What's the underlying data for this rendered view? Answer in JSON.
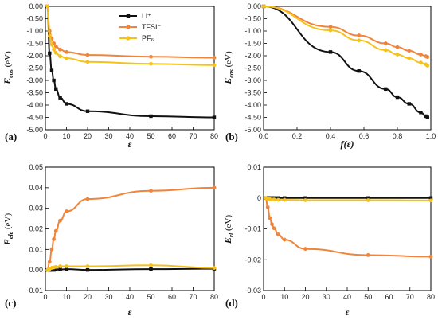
{
  "colors": {
    "li": "#111111",
    "tfsi": "#f0843a",
    "pf6": "#f5c21b"
  },
  "legend": [
    {
      "label": "Li⁺",
      "color": "#111111",
      "marker": "square"
    },
    {
      "label": "TFSI⁻",
      "color": "#f0843a",
      "marker": "circle"
    },
    {
      "label": "PF₆⁻",
      "color": "#f5c21b",
      "marker": "circle"
    }
  ],
  "chart_data": [
    {
      "panel": "(a)",
      "type": "line",
      "xlabel": "ε",
      "ylabel": "Ecos (eV)",
      "xlim": [
        0,
        80
      ],
      "ylim": [
        -5.0,
        0.0
      ],
      "xticks": [
        0,
        10,
        20,
        30,
        40,
        50,
        60,
        70,
        80
      ],
      "yticks": [
        0.0,
        -0.5,
        -1.0,
        -1.5,
        -2.0,
        -2.5,
        -3.0,
        -3.5,
        -4.0,
        -4.5,
        -5.0
      ],
      "ytick_labels": [
        "0.00",
        "-0.50",
        "-1.00",
        "-1.50",
        "-2.00",
        "-2.50",
        "-3.00",
        "-3.50",
        "-4.00",
        "-4.50",
        "-5.00"
      ],
      "series": [
        {
          "name": "Li⁺",
          "color": "#111111",
          "marker": "square",
          "x": [
            1,
            2,
            3,
            4,
            5,
            7,
            10,
            20,
            50,
            80
          ],
          "y": [
            0.0,
            -1.9,
            -2.6,
            -3.0,
            -3.35,
            -3.7,
            -3.95,
            -4.25,
            -4.45,
            -4.5
          ]
        },
        {
          "name": "TFSI⁻",
          "color": "#f0843a",
          "marker": "circle",
          "x": [
            1,
            2,
            3,
            4,
            5,
            7,
            10,
            20,
            50,
            80
          ],
          "y": [
            0.0,
            -1.0,
            -1.3,
            -1.5,
            -1.62,
            -1.75,
            -1.85,
            -1.97,
            -2.04,
            -2.08
          ]
        },
        {
          "name": "PF₆⁻",
          "color": "#f5c21b",
          "marker": "circle",
          "x": [
            1,
            2,
            3,
            4,
            5,
            7,
            10,
            20,
            50,
            80
          ],
          "y": [
            0.0,
            -1.2,
            -1.55,
            -1.75,
            -1.88,
            -2.02,
            -2.1,
            -2.25,
            -2.33,
            -2.38
          ]
        }
      ]
    },
    {
      "panel": "(b)",
      "type": "line",
      "xlabel": "f(ε)",
      "ylabel": "Ecos (eV)",
      "xlim": [
        0,
        1.0
      ],
      "ylim": [
        -5.0,
        0.0
      ],
      "xticks": [
        0,
        0.2,
        0.4,
        0.6,
        0.8,
        1.0
      ],
      "xtick_labels": [
        "0.0",
        "0.2",
        "0.4",
        "0.6",
        "0.8",
        "1.0"
      ],
      "yticks": [
        0.0,
        -0.5,
        -1.0,
        -1.5,
        -2.0,
        -2.5,
        -3.0,
        -3.5,
        -4.0,
        -4.5,
        -5.0
      ],
      "ytick_labels": [
        "0.00",
        "-0.50",
        "-1.00",
        "-1.50",
        "-2.00",
        "-2.50",
        "-3.00",
        "-3.50",
        "-4.00",
        "-4.50",
        "-5.00"
      ],
      "series": [
        {
          "name": "Li⁺",
          "color": "#111111",
          "marker": "square",
          "x": [
            0,
            0.4,
            0.57,
            0.73,
            0.8,
            0.87,
            0.94,
            0.97,
            0.98
          ],
          "y": [
            0.0,
            -1.85,
            -2.62,
            -3.35,
            -3.68,
            -3.95,
            -4.3,
            -4.45,
            -4.5
          ]
        },
        {
          "name": "TFSI⁻",
          "color": "#f0843a",
          "marker": "circle",
          "x": [
            0,
            0.4,
            0.57,
            0.73,
            0.8,
            0.87,
            0.94,
            0.97,
            0.98
          ],
          "y": [
            0.0,
            -0.83,
            -1.18,
            -1.5,
            -1.65,
            -1.8,
            -1.95,
            -2.02,
            -2.05
          ]
        },
        {
          "name": "PF₆⁻",
          "color": "#f5c21b",
          "marker": "circle",
          "x": [
            0,
            0.4,
            0.57,
            0.73,
            0.8,
            0.87,
            0.94,
            0.97,
            0.98
          ],
          "y": [
            0.0,
            -0.97,
            -1.38,
            -1.77,
            -1.95,
            -2.1,
            -2.28,
            -2.35,
            -2.4
          ]
        }
      ]
    },
    {
      "panel": "(c)",
      "type": "line",
      "xlabel": "ε",
      "ylabel": "Eele (eV)",
      "xlim": [
        0,
        80
      ],
      "ylim": [
        -0.01,
        0.05
      ],
      "xticks": [
        0,
        10,
        20,
        30,
        40,
        50,
        60,
        70,
        80
      ],
      "yticks": [
        -0.01,
        0.0,
        0.01,
        0.02,
        0.03,
        0.04,
        0.05
      ],
      "ytick_labels": [
        "-0.01",
        "0.00",
        "0.01",
        "0.02",
        "0.03",
        "0.04",
        "0.05"
      ],
      "series": [
        {
          "name": "Li⁺",
          "color": "#111111",
          "marker": "square",
          "x": [
            1,
            2,
            3,
            4,
            5,
            7,
            10,
            20,
            50,
            80
          ],
          "y": [
            0.0,
            0.0,
            0.0,
            0.0,
            0.0002,
            0.0002,
            0.0004,
            0.0,
            0.0004,
            0.0006
          ]
        },
        {
          "name": "TFSI⁻",
          "color": "#f0843a",
          "marker": "circle",
          "x": [
            1,
            2,
            3,
            4,
            5,
            7,
            10,
            20,
            50,
            80
          ],
          "y": [
            0.0,
            0.004,
            0.01,
            0.015,
            0.019,
            0.024,
            0.0285,
            0.0345,
            0.0385,
            0.04
          ]
        },
        {
          "name": "PF₆⁻",
          "color": "#f5c21b",
          "marker": "circle",
          "x": [
            1,
            2,
            3,
            4,
            5,
            7,
            10,
            20,
            50,
            80
          ],
          "y": [
            0.0,
            0.0005,
            0.001,
            0.0012,
            0.0015,
            0.0018,
            0.0018,
            0.0018,
            0.0023,
            0.001
          ]
        }
      ]
    },
    {
      "panel": "(d)",
      "type": "line",
      "xlabel": "ε",
      "ylabel": "Erl (eV)",
      "xlim": [
        0,
        80
      ],
      "ylim": [
        -0.03,
        0.01
      ],
      "xticks": [
        0,
        10,
        20,
        30,
        40,
        50,
        60,
        70,
        80
      ],
      "yticks": [
        -0.03,
        -0.02,
        -0.01,
        0.0,
        0.01
      ],
      "ytick_labels": [
        "-0.03",
        "-0.02",
        "-0.01",
        "0",
        "0.01"
      ],
      "series": [
        {
          "name": "Li⁺",
          "color": "#111111",
          "marker": "square",
          "x": [
            1,
            2,
            3,
            4,
            5,
            7,
            10,
            20,
            50,
            80
          ],
          "y": [
            0.0,
            0.0,
            0.0,
            0.0,
            0.0,
            0.0,
            0.0,
            0.0,
            0.0,
            0.0
          ]
        },
        {
          "name": "TFSI⁻",
          "color": "#f0843a",
          "marker": "circle",
          "x": [
            1,
            2,
            3,
            4,
            5,
            7,
            10,
            20,
            50,
            80
          ],
          "y": [
            0.0,
            -0.003,
            -0.0065,
            -0.0085,
            -0.0098,
            -0.0118,
            -0.0135,
            -0.0165,
            -0.0185,
            -0.019
          ]
        },
        {
          "name": "PF₆⁻",
          "color": "#f5c21b",
          "marker": "circle",
          "x": [
            1,
            2,
            3,
            4,
            5,
            7,
            10,
            20,
            50,
            80
          ],
          "y": [
            0.0,
            -0.0003,
            -0.0004,
            -0.0005,
            -0.0005,
            -0.0006,
            -0.0006,
            -0.0007,
            -0.0007,
            -0.0008
          ]
        }
      ]
    }
  ]
}
